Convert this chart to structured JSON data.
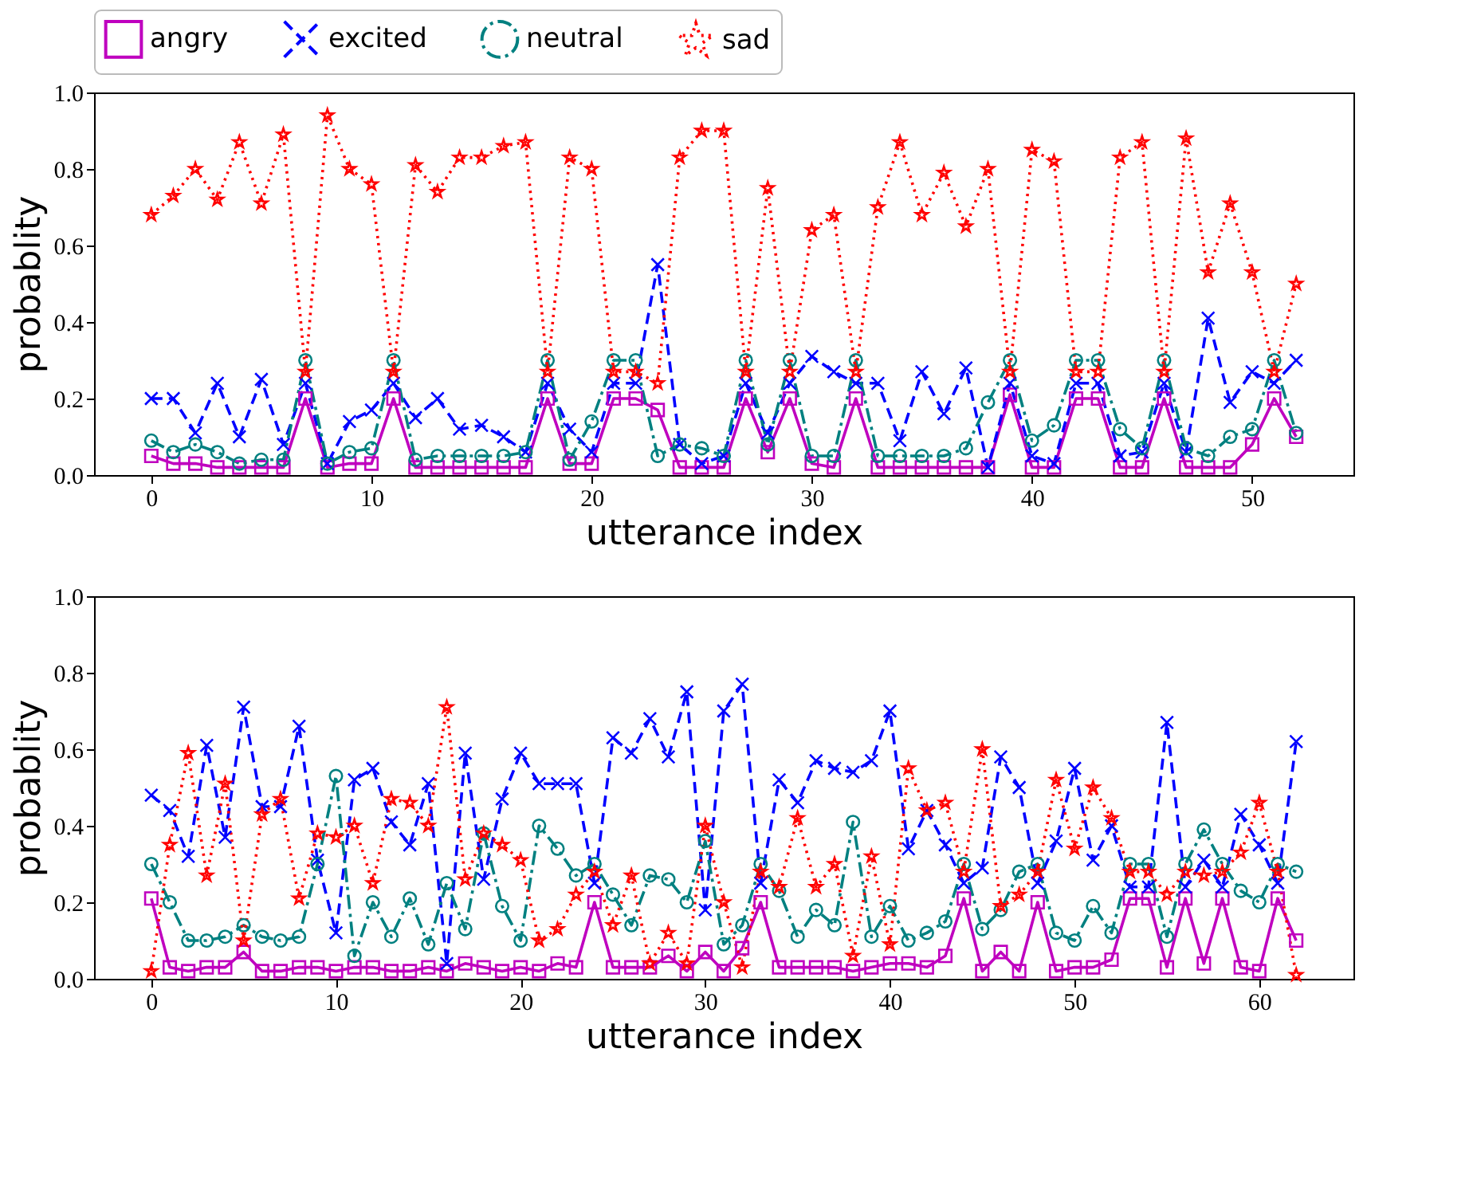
{
  "chart_data": [
    {
      "type": "line",
      "xlabel": "utterance index",
      "ylabel": "probablity",
      "legend": "top",
      "grid": false,
      "xlim": [
        -2.6,
        54.6
      ],
      "xticks": [
        0,
        10,
        20,
        30,
        40,
        50
      ],
      "ylim": [
        0,
        1
      ],
      "yticks": [
        {
          "value": 0,
          "label": "0.0"
        },
        {
          "value": 0.2,
          "label": "0.2"
        },
        {
          "value": 0.4,
          "label": "0.4"
        },
        {
          "value": 0.6,
          "label": "0.6"
        },
        {
          "value": 0.8,
          "label": "0.8"
        },
        {
          "value": 1,
          "label": "1.0"
        }
      ],
      "x": [
        0,
        1,
        2,
        3,
        4,
        5,
        6,
        7,
        8,
        9,
        10,
        11,
        12,
        13,
        14,
        15,
        16,
        17,
        18,
        19,
        20,
        21,
        22,
        23,
        24,
        25,
        26,
        27,
        28,
        29,
        30,
        31,
        32,
        33,
        34,
        35,
        36,
        37,
        38,
        39,
        40,
        41,
        42,
        43,
        44,
        45,
        46,
        47,
        48,
        49,
        50,
        51,
        52
      ],
      "series": [
        {
          "name": "angry",
          "color": "#bf00bf",
          "marker": "square",
          "line_style": "solid",
          "values": [
            0.05,
            0.03,
            0.03,
            0.02,
            0.02,
            0.02,
            0.02,
            0.2,
            0.02,
            0.03,
            0.03,
            0.2,
            0.02,
            0.02,
            0.02,
            0.02,
            0.02,
            0.02,
            0.2,
            0.03,
            0.03,
            0.2,
            0.2,
            0.17,
            0.02,
            0.02,
            0.02,
            0.2,
            0.06,
            0.2,
            0.03,
            0.02,
            0.2,
            0.02,
            0.02,
            0.02,
            0.02,
            0.02,
            0.02,
            0.21,
            0.02,
            0.02,
            0.2,
            0.2,
            0.02,
            0.02,
            0.2,
            0.02,
            0.02,
            0.02,
            0.08,
            0.2,
            0.1
          ]
        },
        {
          "name": "excited",
          "color": "#0000ff",
          "marker": "cross",
          "line_style": "dashed",
          "values": [
            0.2,
            0.2,
            0.11,
            0.24,
            0.1,
            0.25,
            0.08,
            0.24,
            0.03,
            0.14,
            0.17,
            0.24,
            0.15,
            0.2,
            0.12,
            0.13,
            0.1,
            0.06,
            0.24,
            0.12,
            0.06,
            0.24,
            0.24,
            0.55,
            0.08,
            0.03,
            0.05,
            0.24,
            0.11,
            0.24,
            0.31,
            0.27,
            0.24,
            0.24,
            0.09,
            0.27,
            0.16,
            0.28,
            0.02,
            0.24,
            0.05,
            0.03,
            0.24,
            0.24,
            0.05,
            0.06,
            0.24,
            0.06,
            0.41,
            0.19,
            0.27,
            0.24,
            0.3
          ]
        },
        {
          "name": "neutral",
          "color": "#008080",
          "marker": "circle",
          "line_style": "dashdot",
          "values": [
            0.09,
            0.06,
            0.08,
            0.06,
            0.03,
            0.04,
            0.04,
            0.3,
            0.03,
            0.06,
            0.07,
            0.3,
            0.04,
            0.05,
            0.05,
            0.05,
            0.05,
            0.06,
            0.3,
            0.04,
            0.14,
            0.3,
            0.3,
            0.05,
            0.08,
            0.07,
            0.05,
            0.3,
            0.08,
            0.3,
            0.05,
            0.05,
            0.3,
            0.05,
            0.05,
            0.05,
            0.05,
            0.07,
            0.19,
            0.3,
            0.09,
            0.13,
            0.3,
            0.3,
            0.12,
            0.07,
            0.3,
            0.07,
            0.05,
            0.1,
            0.12,
            0.3,
            0.11
          ]
        },
        {
          "name": "sad",
          "color": "#ff0000",
          "marker": "star",
          "line_style": "dotted",
          "values": [
            0.68,
            0.73,
            0.8,
            0.72,
            0.87,
            0.71,
            0.89,
            0.27,
            0.94,
            0.8,
            0.76,
            0.27,
            0.81,
            0.74,
            0.83,
            0.83,
            0.86,
            0.87,
            0.27,
            0.83,
            0.8,
            0.27,
            0.27,
            0.24,
            0.83,
            0.9,
            0.9,
            0.27,
            0.75,
            0.27,
            0.64,
            0.68,
            0.27,
            0.7,
            0.87,
            0.68,
            0.79,
            0.65,
            0.8,
            0.27,
            0.85,
            0.82,
            0.27,
            0.27,
            0.83,
            0.87,
            0.27,
            0.88,
            0.53,
            0.71,
            0.53,
            0.27,
            0.5
          ]
        }
      ]
    },
    {
      "type": "line",
      "xlabel": "utterance index",
      "ylabel": "probablity",
      "legend": "top",
      "grid": false,
      "xlim": [
        -3.1,
        65.1
      ],
      "xticks": [
        0,
        10,
        20,
        30,
        40,
        50,
        60
      ],
      "ylim": [
        0,
        1
      ],
      "yticks": [
        {
          "value": 0,
          "label": "0.0"
        },
        {
          "value": 0.2,
          "label": "0.2"
        },
        {
          "value": 0.4,
          "label": "0.4"
        },
        {
          "value": 0.6,
          "label": "0.6"
        },
        {
          "value": 0.8,
          "label": "0.8"
        },
        {
          "value": 1,
          "label": "1.0"
        }
      ],
      "x": [
        0,
        1,
        2,
        3,
        4,
        5,
        6,
        7,
        8,
        9,
        10,
        11,
        12,
        13,
        14,
        15,
        16,
        17,
        18,
        19,
        20,
        21,
        22,
        23,
        24,
        25,
        26,
        27,
        28,
        29,
        30,
        31,
        32,
        33,
        34,
        35,
        36,
        37,
        38,
        39,
        40,
        41,
        42,
        43,
        44,
        45,
        46,
        47,
        48,
        49,
        50,
        51,
        52,
        53,
        54,
        55,
        56,
        57,
        58,
        59,
        60,
        61,
        62
      ],
      "series": [
        {
          "name": "angry",
          "color": "#bf00bf",
          "marker": "square",
          "line_style": "solid",
          "values": [
            0.21,
            0.03,
            0.02,
            0.03,
            0.03,
            0.07,
            0.02,
            0.02,
            0.03,
            0.03,
            0.02,
            0.03,
            0.03,
            0.02,
            0.02,
            0.03,
            0.02,
            0.04,
            0.03,
            0.02,
            0.03,
            0.02,
            0.04,
            0.03,
            0.2,
            0.03,
            0.03,
            0.03,
            0.06,
            0.02,
            0.07,
            0.02,
            0.08,
            0.2,
            0.03,
            0.03,
            0.03,
            0.03,
            0.02,
            0.03,
            0.04,
            0.04,
            0.03,
            0.06,
            0.21,
            0.02,
            0.07,
            0.02,
            0.2,
            0.02,
            0.03,
            0.03,
            0.05,
            0.21,
            0.21,
            0.03,
            0.21,
            0.04,
            0.21,
            0.03,
            0.02,
            0.21,
            0.1
          ]
        },
        {
          "name": "excited",
          "color": "#0000ff",
          "marker": "cross",
          "line_style": "dashed",
          "values": [
            0.48,
            0.44,
            0.32,
            0.61,
            0.37,
            0.71,
            0.45,
            0.45,
            0.66,
            0.31,
            0.12,
            0.52,
            0.55,
            0.41,
            0.35,
            0.51,
            0.04,
            0.59,
            0.26,
            0.47,
            0.59,
            0.51,
            0.51,
            0.51,
            0.25,
            0.63,
            0.59,
            0.68,
            0.58,
            0.75,
            0.18,
            0.7,
            0.77,
            0.25,
            0.52,
            0.46,
            0.57,
            0.55,
            0.54,
            0.57,
            0.7,
            0.34,
            0.44,
            0.35,
            0.25,
            0.29,
            0.58,
            0.5,
            0.25,
            0.36,
            0.55,
            0.31,
            0.4,
            0.24,
            0.24,
            0.67,
            0.24,
            0.31,
            0.24,
            0.43,
            0.35,
            0.25,
            0.62
          ]
        },
        {
          "name": "neutral",
          "color": "#008080",
          "marker": "circle",
          "line_style": "dashdot",
          "values": [
            0.3,
            0.2,
            0.1,
            0.1,
            0.11,
            0.14,
            0.11,
            0.1,
            0.11,
            0.3,
            0.53,
            0.06,
            0.2,
            0.11,
            0.21,
            0.09,
            0.25,
            0.13,
            0.38,
            0.19,
            0.1,
            0.4,
            0.34,
            0.27,
            0.3,
            0.22,
            0.14,
            0.27,
            0.26,
            0.2,
            0.36,
            0.09,
            0.14,
            0.3,
            0.23,
            0.11,
            0.18,
            0.14,
            0.41,
            0.11,
            0.19,
            0.1,
            0.12,
            0.15,
            0.3,
            0.13,
            0.18,
            0.28,
            0.3,
            0.12,
            0.1,
            0.19,
            0.12,
            0.3,
            0.3,
            0.11,
            0.3,
            0.39,
            0.3,
            0.23,
            0.2,
            0.3,
            0.28
          ]
        },
        {
          "name": "sad",
          "color": "#ff0000",
          "marker": "star",
          "line_style": "dotted",
          "values": [
            0.02,
            0.35,
            0.59,
            0.27,
            0.51,
            0.1,
            0.43,
            0.47,
            0.21,
            0.38,
            0.37,
            0.4,
            0.25,
            0.47,
            0.46,
            0.4,
            0.71,
            0.26,
            0.38,
            0.35,
            0.31,
            0.1,
            0.13,
            0.22,
            0.28,
            0.14,
            0.27,
            0.04,
            0.12,
            0.04,
            0.4,
            0.2,
            0.03,
            0.28,
            0.24,
            0.42,
            0.24,
            0.3,
            0.06,
            0.32,
            0.09,
            0.55,
            0.44,
            0.46,
            0.28,
            0.6,
            0.19,
            0.22,
            0.28,
            0.52,
            0.34,
            0.5,
            0.42,
            0.28,
            0.28,
            0.22,
            0.28,
            0.27,
            0.28,
            0.33,
            0.46,
            0.28,
            0.01
          ]
        }
      ]
    }
  ]
}
